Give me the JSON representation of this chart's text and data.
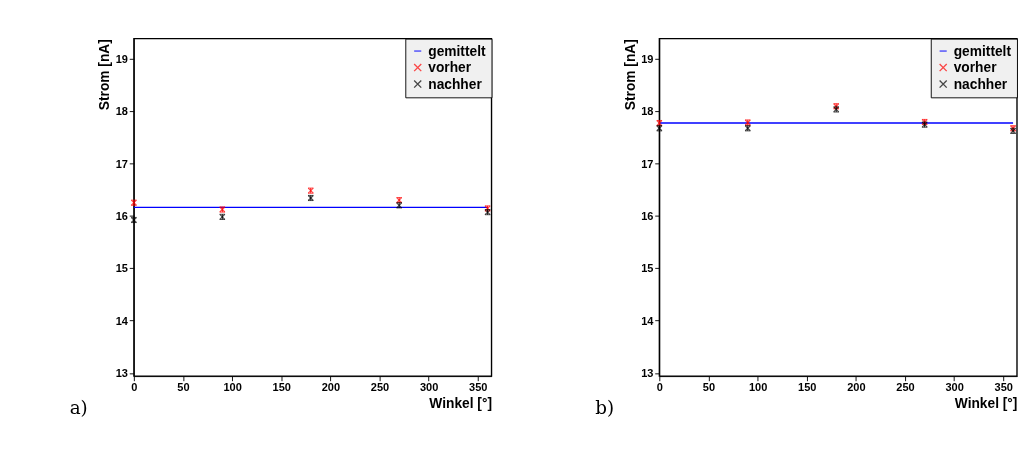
{
  "chart_data": [
    {
      "type": "scatter",
      "xlabel": "Winkel [°]",
      "ylabel": "Strom [nA]",
      "annotations": [
        "a)"
      ],
      "xlim": [
        0,
        364
      ],
      "xticks": [
        0,
        50,
        100,
        150,
        200,
        250,
        300,
        350
      ],
      "ylim": [
        12.94,
        19.38
      ],
      "yticks": [
        13,
        14,
        15,
        16,
        17,
        18,
        19
      ],
      "grid": false,
      "legend": "top right",
      "marker": "cross",
      "series": [
        {
          "name": "gemittelt",
          "type": "line",
          "marker": "none",
          "line_style": "solid",
          "color": "#0000ff",
          "x": [
            0,
            360
          ],
          "values": [
            16.16,
            16.16
          ]
        },
        {
          "name": "vorher",
          "color": "#ff0000",
          "x": [
            0,
            90,
            180,
            270,
            360
          ],
          "values": [
            16.25,
            16.12,
            16.48,
            16.3,
            16.14
          ],
          "errors": [
            0.05,
            0.05,
            0.05,
            0.05,
            0.05
          ]
        },
        {
          "name": "nachher",
          "color": "#000000",
          "x": [
            0,
            90,
            180,
            270,
            360
          ],
          "values": [
            15.92,
            15.98,
            16.34,
            16.2,
            16.07
          ],
          "errors": [
            0.05,
            0.05,
            0.05,
            0.05,
            0.05
          ]
        }
      ]
    },
    {
      "type": "scatter",
      "xlabel": "Winkel [°]",
      "ylabel": "Strom [nA]",
      "annotations": [
        "b)"
      ],
      "xlim": [
        0,
        364
      ],
      "xticks": [
        0,
        50,
        100,
        150,
        200,
        250,
        300,
        350
      ],
      "ylim": [
        12.94,
        19.38
      ],
      "yticks": [
        13,
        14,
        15,
        16,
        17,
        18,
        19
      ],
      "grid": false,
      "legend": "top right",
      "marker": "cross",
      "series": [
        {
          "name": "gemittelt",
          "type": "line",
          "marker": "none",
          "line_style": "solid",
          "color": "#0000ff",
          "x": [
            0,
            360
          ],
          "values": [
            17.77,
            17.77
          ]
        },
        {
          "name": "vorher",
          "color": "#ff0000",
          "x": [
            0,
            90,
            180,
            270,
            360
          ],
          "values": [
            17.77,
            17.78,
            18.09,
            17.79,
            17.67
          ],
          "errors": [
            0.05,
            0.05,
            0.05,
            0.05,
            0.05
          ]
        },
        {
          "name": "nachher",
          "color": "#000000",
          "x": [
            0,
            90,
            180,
            270,
            360
          ],
          "values": [
            17.67,
            17.67,
            18.03,
            17.74,
            17.62
          ],
          "errors": [
            0.05,
            0.05,
            0.05,
            0.05,
            0.05
          ]
        }
      ]
    }
  ]
}
